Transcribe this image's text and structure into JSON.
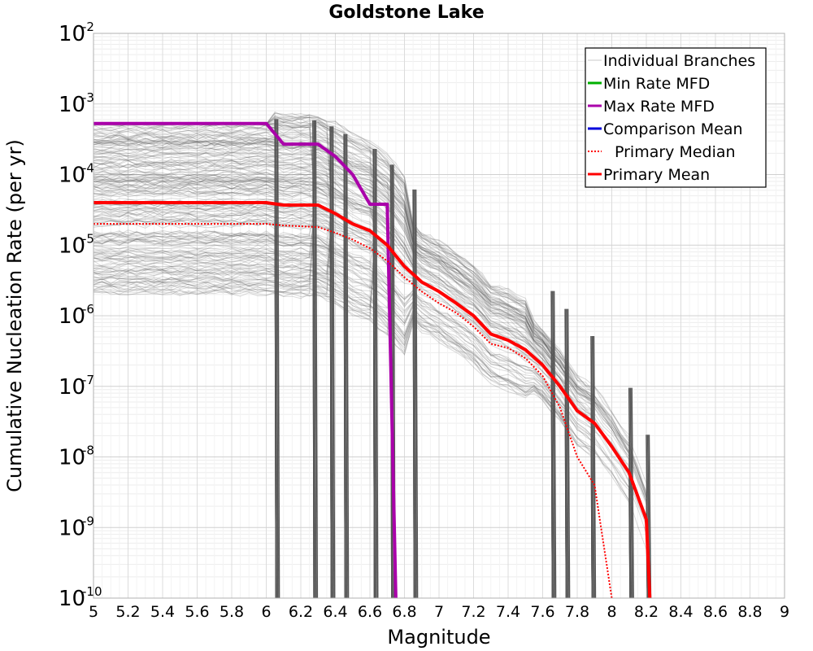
{
  "chart_data": {
    "type": "line",
    "title": "Goldstone Lake",
    "xlabel": "Magnitude",
    "ylabel": "Cumulative Nucleation Rate (per yr)",
    "xlim": [
      5,
      9
    ],
    "ylim": [
      1e-10,
      0.01
    ],
    "yscale": "log",
    "grid": true,
    "legend_position": "top-right",
    "x_ticks": [
      "5",
      "5.2",
      "5.4",
      "5.6",
      "5.8",
      "6",
      "6.2",
      "6.4",
      "6.6",
      "6.8",
      "7",
      "7.2",
      "7.4",
      "7.6",
      "7.8",
      "8",
      "8.2",
      "8.4",
      "8.6",
      "8.8",
      "9"
    ],
    "y_ticks": [
      {
        "base": "10",
        "exp": "-2"
      },
      {
        "base": "10",
        "exp": "-3"
      },
      {
        "base": "10",
        "exp": "-4"
      },
      {
        "base": "10",
        "exp": "-5"
      },
      {
        "base": "10",
        "exp": "-6"
      },
      {
        "base": "10",
        "exp": "-7"
      },
      {
        "base": "10",
        "exp": "-8"
      },
      {
        "base": "10",
        "exp": "-9"
      },
      {
        "base": "10",
        "exp": "-10"
      }
    ],
    "legend": [
      {
        "label": "Individual Branches",
        "color": "#c8c8c8",
        "style": "solid"
      },
      {
        "label": "Min Rate MFD",
        "color": "#00b000",
        "style": "solid"
      },
      {
        "label": "Max Rate MFD",
        "color": "#aa00aa",
        "style": "solid"
      },
      {
        "label": "Comparison Mean",
        "color": "#0000dd",
        "style": "solid"
      },
      {
        "label": "Primary Median",
        "color": "#ff0000",
        "style": "dotted"
      },
      {
        "label": "Primary Mean",
        "color": "#ff0000",
        "style": "solid"
      }
    ],
    "series": [
      {
        "name": "Max Rate MFD",
        "color": "#aa00aa",
        "x": [
          5.0,
          6.0,
          6.1,
          6.3,
          6.4,
          6.5,
          6.6,
          6.7,
          6.75
        ],
        "y": [
          0.00053,
          0.00053,
          0.00027,
          0.00027,
          0.00018,
          0.0001,
          3.8e-05,
          3.8e-05,
          1e-10
        ]
      },
      {
        "name": "Primary Mean",
        "color": "#ff0000",
        "x": [
          5.0,
          6.0,
          6.1,
          6.3,
          6.4,
          6.5,
          6.6,
          6.7,
          6.8,
          6.9,
          7.0,
          7.1,
          7.2,
          7.3,
          7.4,
          7.5,
          7.6,
          7.7,
          7.8,
          7.9,
          8.0,
          8.1,
          8.2,
          8.22
        ],
        "y": [
          4e-05,
          4e-05,
          3.7e-05,
          3.7e-05,
          2.8e-05,
          2e-05,
          1.6e-05,
          1e-05,
          5e-06,
          3e-06,
          2.2e-06,
          1.5e-06,
          1e-06,
          5.5e-07,
          4.5e-07,
          3.3e-07,
          2e-07,
          1e-07,
          4.5e-08,
          3e-08,
          1.4e-08,
          6e-09,
          1.3e-09,
          1e-10
        ]
      },
      {
        "name": "Primary Median",
        "color": "#ff0000",
        "dashed": true,
        "x": [
          5.0,
          6.0,
          6.1,
          6.3,
          6.4,
          6.5,
          6.6,
          6.7,
          6.8,
          6.9,
          7.0,
          7.1,
          7.2,
          7.3,
          7.4,
          7.5,
          7.6,
          7.7,
          7.8,
          7.9,
          8.0
        ],
        "y": [
          2e-05,
          2e-05,
          1.9e-05,
          1.8e-05,
          1.5e-05,
          1.2e-05,
          9e-06,
          6e-06,
          3.5e-06,
          2.2e-06,
          1.5e-06,
          1.1e-06,
          7e-07,
          4e-07,
          3.5e-07,
          2.5e-07,
          1.4e-07,
          5e-08,
          1e-08,
          4e-09,
          1e-10
        ]
      }
    ]
  }
}
